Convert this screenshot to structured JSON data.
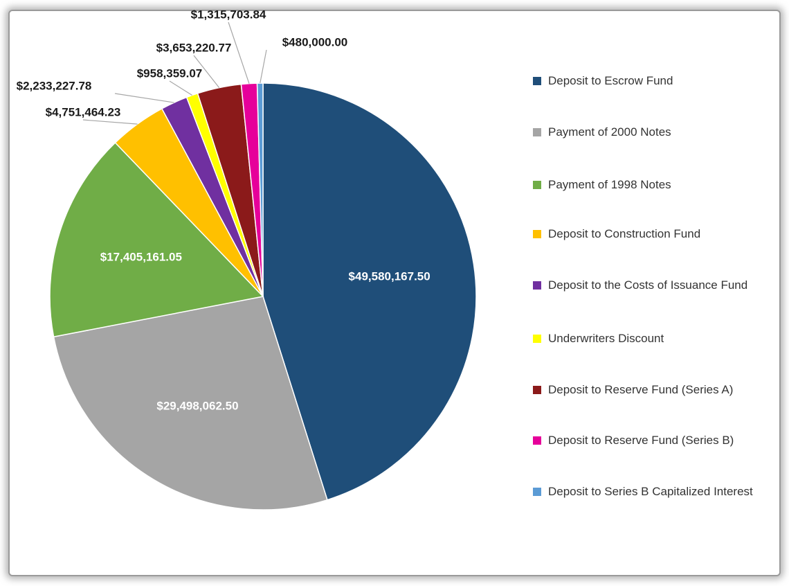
{
  "chart_data": {
    "type": "pie",
    "categories": [
      "Deposit to Escrow Fund",
      "Payment of 2000 Notes",
      "Payment of 1998 Notes",
      "Deposit to Construction Fund",
      "Deposit to the Costs of Issuance Fund",
      "Underwriters Discount",
      "Deposit to Reserve Fund (Series A)",
      "Deposit to Reserve Fund (Series B)",
      "Deposit to Series B Capitalized Interest"
    ],
    "values": [
      49580167.5,
      29498062.5,
      17405161.05,
      4751464.23,
      2233227.78,
      958359.07,
      3653220.77,
      1315703.84,
      480000.0
    ],
    "value_labels": [
      "$49,580,167.50",
      "$29,498,062.50",
      "$17,405,161.05",
      "$4,751,464.23",
      "$2,233,227.78",
      "$958,359.07",
      "$3,653,220.77",
      "$1,315,703.84",
      "$480,000.00"
    ],
    "colors": [
      "#1f4e79",
      "#a5a5a5",
      "#70ad47",
      "#ffc000",
      "#7030a0",
      "#ffff00",
      "#8b1a1a",
      "#e6009a",
      "#5b9bd5"
    ],
    "legend": "right"
  }
}
